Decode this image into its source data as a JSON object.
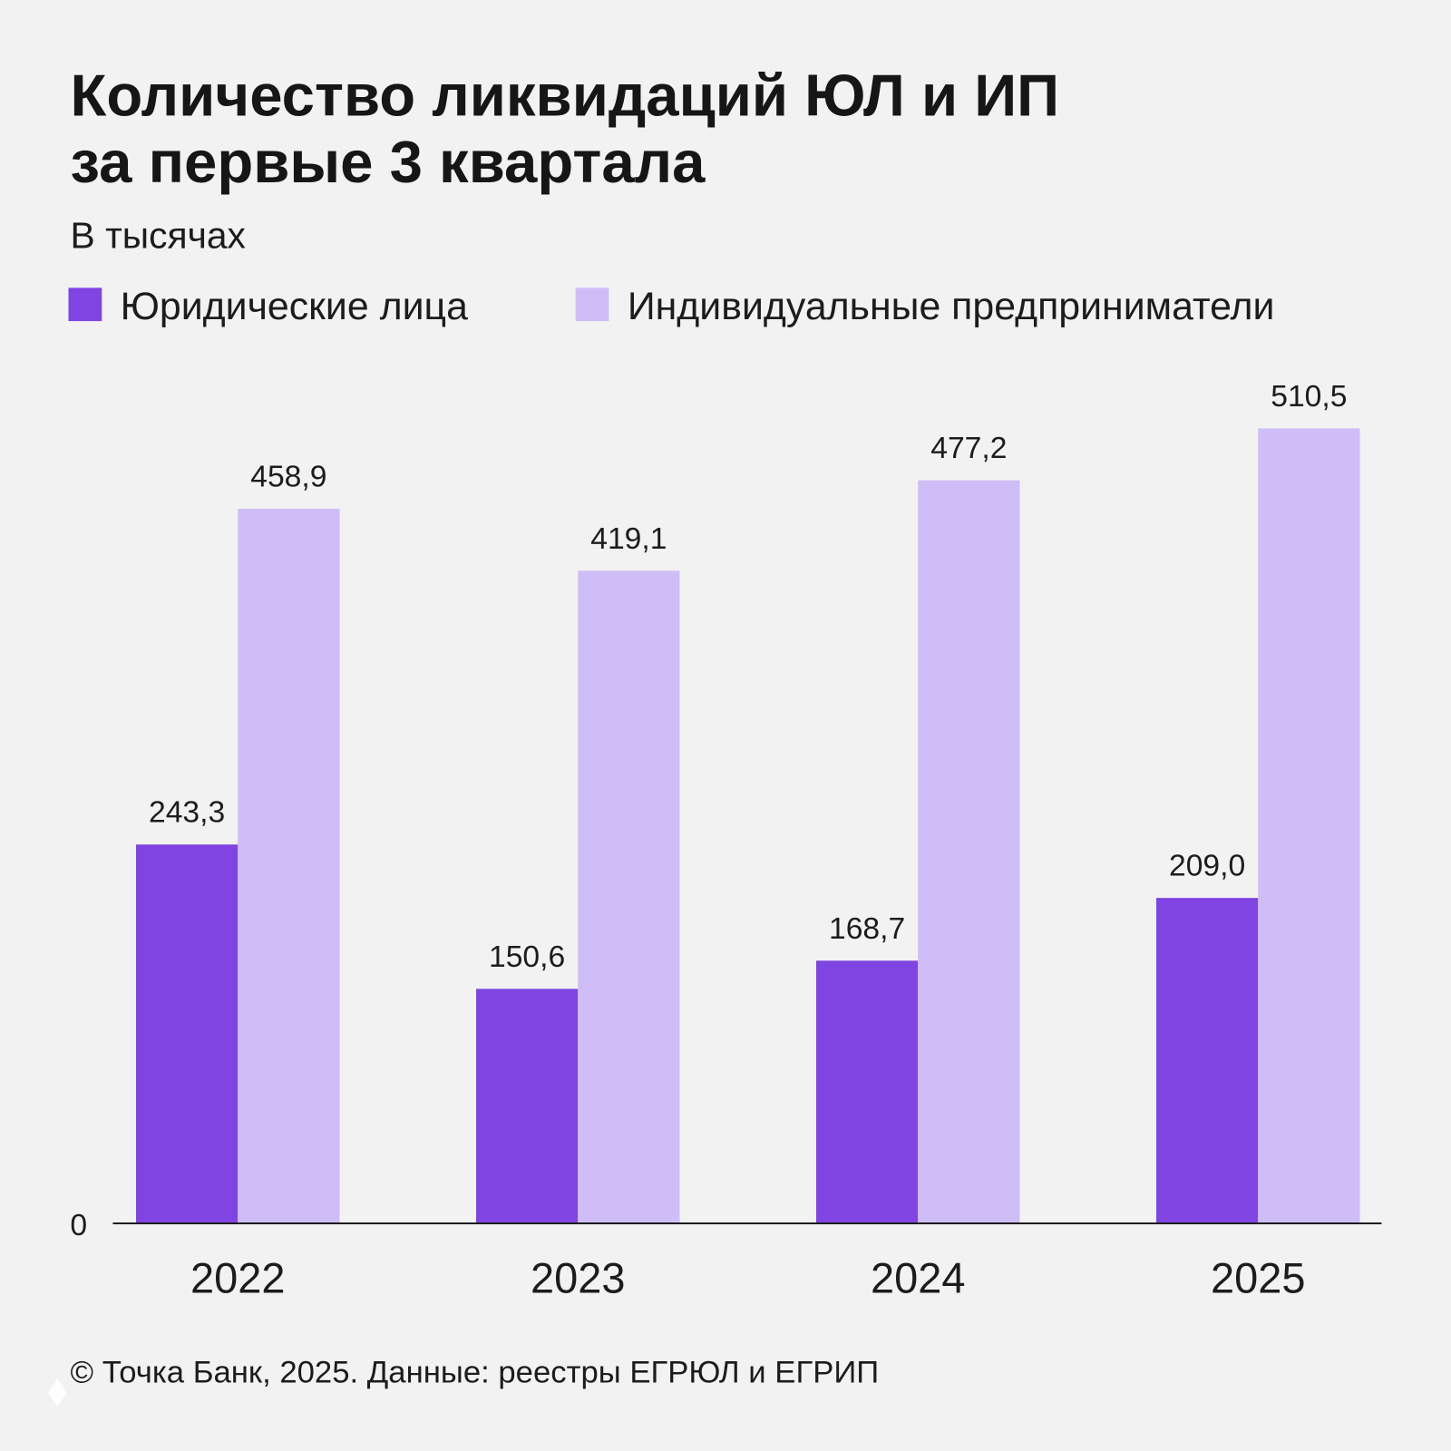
{
  "chart_data": {
    "type": "bar",
    "title_lines": [
      "Количество ликвидаций ЮЛ и ИП",
      "за первые 3 квартала"
    ],
    "subtitle": "В тысячах",
    "categories": [
      "2022",
      "2023",
      "2024",
      "2025"
    ],
    "series": [
      {
        "name": "Юридические лица",
        "color": "#8044e2",
        "values": [
          243.3,
          150.6,
          168.7,
          209.0
        ],
        "labels": [
          "243,3",
          "150,6",
          "168,7",
          "209,0"
        ]
      },
      {
        "name": "Индивидуальные предприниматели",
        "color": "#cfbdf8",
        "values": [
          458.9,
          419.1,
          477.2,
          510.5
        ],
        "labels": [
          "458,9",
          "419,1",
          "477,2",
          "510,5"
        ]
      }
    ],
    "y_tick_zero": "0",
    "ylim": [
      0,
      510.5
    ],
    "grid": false,
    "legend_placement": "top-left",
    "background": "#f2f2f2"
  },
  "footer": "© Точка Банк, 2025. Данные: реестры ЕГРЮЛ и ЕГРИП"
}
